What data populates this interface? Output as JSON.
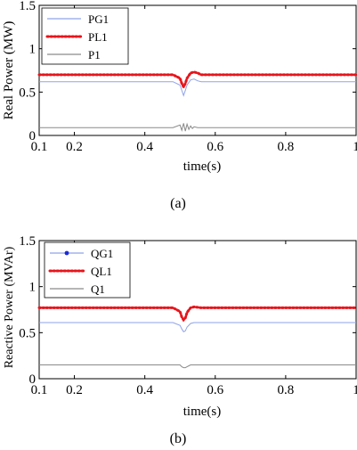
{
  "chart_data": [
    {
      "type": "line",
      "caption": "(a)",
      "xlabel": "time(s)",
      "ylabel": "Real Power (MW)",
      "xlim": [
        0.1,
        1
      ],
      "ylim": [
        0,
        1.5
      ],
      "xticks": [
        0.1,
        0.2,
        0.4,
        0.6,
        0.8,
        1
      ],
      "xtick_labels": [
        "0.1",
        "0.2",
        "0.4",
        "0.6",
        "0.8",
        "1"
      ],
      "yticks": [
        0,
        0.5,
        1,
        1.5
      ],
      "ytick_labels": [
        "0",
        "0.5",
        "1",
        "1.5"
      ],
      "legend": "top-left",
      "grid": false,
      "series": [
        {
          "name": "PG1",
          "color": "#8fa3e8",
          "style": "solid",
          "x": [
            0.1,
            0.2,
            0.3,
            0.4,
            0.45,
            0.48,
            0.5,
            0.505,
            0.51,
            0.515,
            0.52,
            0.53,
            0.54,
            0.55,
            0.56,
            0.6,
            0.7,
            0.8,
            0.9,
            1.0
          ],
          "y": [
            0.62,
            0.62,
            0.62,
            0.62,
            0.62,
            0.62,
            0.58,
            0.52,
            0.46,
            0.52,
            0.58,
            0.64,
            0.65,
            0.63,
            0.62,
            0.62,
            0.62,
            0.62,
            0.62,
            0.62
          ]
        },
        {
          "name": "PL1",
          "color": "#e8141b",
          "style": "dotted",
          "x": [
            0.1,
            0.2,
            0.3,
            0.4,
            0.45,
            0.48,
            0.5,
            0.505,
            0.51,
            0.515,
            0.52,
            0.53,
            0.54,
            0.55,
            0.56,
            0.6,
            0.7,
            0.8,
            0.9,
            1.0
          ],
          "y": [
            0.7,
            0.7,
            0.7,
            0.7,
            0.7,
            0.7,
            0.66,
            0.6,
            0.56,
            0.6,
            0.66,
            0.72,
            0.73,
            0.72,
            0.7,
            0.7,
            0.7,
            0.7,
            0.7,
            0.7
          ]
        },
        {
          "name": "P1",
          "color": "#8a8a8a",
          "style": "solid",
          "x": [
            0.1,
            0.2,
            0.3,
            0.4,
            0.48,
            0.5,
            0.505,
            0.51,
            0.515,
            0.52,
            0.525,
            0.53,
            0.535,
            0.54,
            0.55,
            0.56,
            0.6,
            0.7,
            0.8,
            0.9,
            1.0
          ],
          "y": [
            0.09,
            0.09,
            0.09,
            0.09,
            0.09,
            0.12,
            0.06,
            0.14,
            0.05,
            0.13,
            0.07,
            0.11,
            0.08,
            0.1,
            0.09,
            0.09,
            0.09,
            0.09,
            0.09,
            0.09,
            0.09
          ]
        }
      ]
    },
    {
      "type": "line",
      "caption": "(b)",
      "xlabel": "time(s)",
      "ylabel": "Reactive Power (MVAr)",
      "xlim": [
        0.1,
        1
      ],
      "ylim": [
        0,
        1.5
      ],
      "xticks": [
        0.1,
        0.2,
        0.4,
        0.6,
        0.8,
        1
      ],
      "xtick_labels": [
        "0.1",
        "0.2",
        "0.4",
        "0.6",
        "0.8",
        "1"
      ],
      "yticks": [
        0,
        0.5,
        1,
        1.5
      ],
      "ytick_labels": [
        "0",
        "0.5",
        "1",
        "1.5"
      ],
      "legend": "top-left",
      "grid": false,
      "series": [
        {
          "name": "QG1",
          "color": "#8fa3e8",
          "style": "solid",
          "x": [
            0.1,
            0.2,
            0.3,
            0.4,
            0.48,
            0.5,
            0.505,
            0.51,
            0.515,
            0.52,
            0.53,
            0.54,
            0.56,
            0.6,
            0.7,
            0.8,
            0.9,
            1.0
          ],
          "y": [
            0.61,
            0.61,
            0.61,
            0.61,
            0.61,
            0.58,
            0.54,
            0.51,
            0.52,
            0.56,
            0.6,
            0.61,
            0.61,
            0.61,
            0.61,
            0.61,
            0.61,
            0.61
          ]
        },
        {
          "name": "QL1",
          "color": "#e8141b",
          "style": "dotted",
          "x": [
            0.1,
            0.2,
            0.3,
            0.4,
            0.48,
            0.5,
            0.505,
            0.51,
            0.515,
            0.52,
            0.53,
            0.54,
            0.56,
            0.6,
            0.7,
            0.8,
            0.9,
            1.0
          ],
          "y": [
            0.77,
            0.77,
            0.77,
            0.77,
            0.77,
            0.73,
            0.67,
            0.64,
            0.66,
            0.72,
            0.77,
            0.78,
            0.77,
            0.77,
            0.77,
            0.77,
            0.77,
            0.77
          ]
        },
        {
          "name": "Q1",
          "color": "#8a8a8a",
          "style": "solid",
          "x": [
            0.1,
            0.2,
            0.3,
            0.4,
            0.5,
            0.505,
            0.51,
            0.515,
            0.52,
            0.525,
            0.53,
            0.6,
            0.7,
            0.8,
            0.9,
            1.0
          ],
          "y": [
            0.15,
            0.15,
            0.15,
            0.15,
            0.15,
            0.13,
            0.12,
            0.12,
            0.13,
            0.14,
            0.15,
            0.15,
            0.15,
            0.15,
            0.15,
            0.15
          ]
        }
      ]
    }
  ]
}
